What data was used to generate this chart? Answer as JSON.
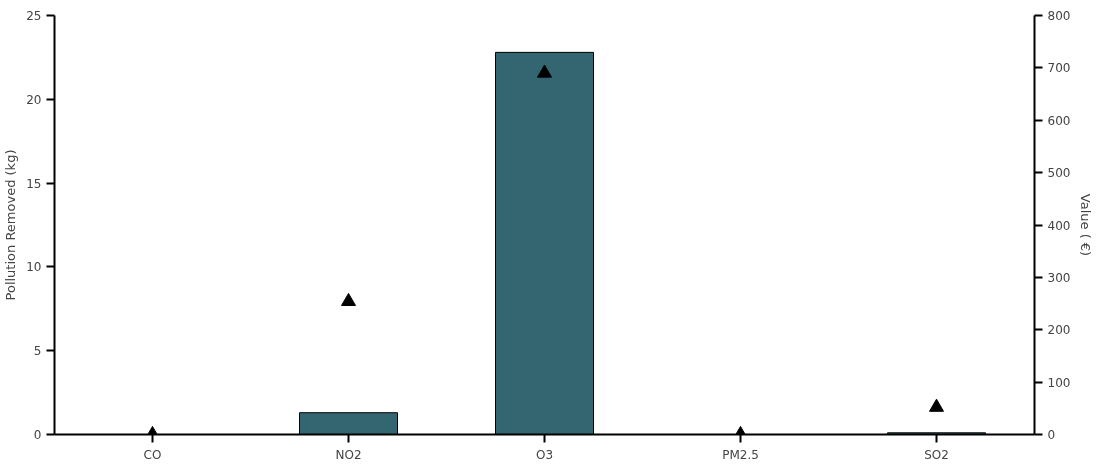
{
  "chart_data": {
    "type": "bar",
    "ylabel": "Pollution Removed (kg)",
    "y2label": "Value ( €)",
    "categories": [
      "CO",
      "NO2",
      "O3",
      "PM2.5",
      "SO2"
    ],
    "series": [
      {
        "color": "#336670",
        "values": [
          0,
          1.3,
          22.8,
          0,
          0.1
        ]
      },
      {
        "type": "scatter",
        "axis": "y2",
        "color": "#000000",
        "marker": "triangle",
        "values": [
          0,
          254,
          690,
          0,
          52
        ]
      }
    ],
    "ylim": [
      0,
      25
    ],
    "yticks": [
      0,
      5,
      10,
      15,
      20,
      25
    ],
    "y2lim": [
      0,
      800
    ],
    "y2ticks": [
      0,
      100,
      200,
      300,
      400,
      500,
      600,
      700,
      800
    ],
    "grid": false
  }
}
